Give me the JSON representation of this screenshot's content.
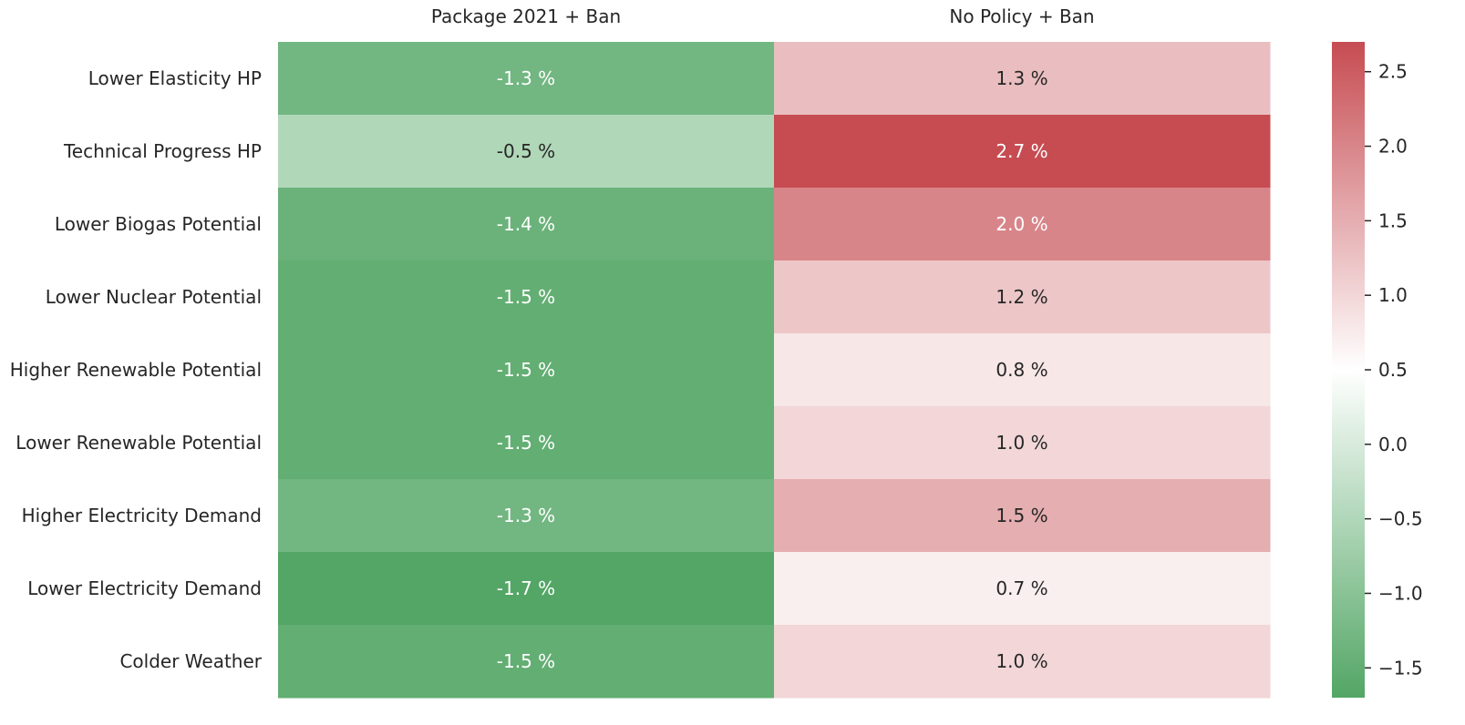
{
  "chart_data": {
    "type": "heatmap",
    "title": "",
    "xlabel": "",
    "ylabel": "",
    "x_axis_position": "top",
    "columns": [
      "Package 2021 + Ban",
      "No Policy + Ban"
    ],
    "rows": [
      "Lower Elasticity HP",
      "Technical Progress HP",
      "Lower Biogas Potential",
      "Lower Nuclear Potential",
      "Higher Renewable Potential",
      "Lower Renewable Potential",
      "Higher Electricity Demand",
      "Lower Electricity Demand",
      "Colder Weather"
    ],
    "values": [
      [
        -1.3,
        1.3
      ],
      [
        -0.5,
        2.7
      ],
      [
        -1.4,
        2.0
      ],
      [
        -1.5,
        1.2
      ],
      [
        -1.5,
        0.8
      ],
      [
        -1.5,
        1.0
      ],
      [
        -1.3,
        1.5
      ],
      [
        -1.7,
        0.7
      ],
      [
        -1.5,
        1.0
      ]
    ],
    "cell_labels": [
      [
        "-1.3 %",
        "1.3 %"
      ],
      [
        "-0.5 %",
        "2.7 %"
      ],
      [
        "-1.4 %",
        "2.0 %"
      ],
      [
        "-1.5 %",
        "1.2 %"
      ],
      [
        "-1.5 %",
        "0.8 %"
      ],
      [
        "-1.5 %",
        "1.0 %"
      ],
      [
        "-1.3 %",
        "1.5 %"
      ],
      [
        "-1.7 %",
        "0.7 %"
      ],
      [
        "-1.5 %",
        "1.0 %"
      ]
    ],
    "colorbar": {
      "range": [
        -1.7,
        2.7
      ],
      "center": 0.5,
      "ticks": [
        -1.5,
        -1.0,
        -0.5,
        0.0,
        0.5,
        1.0,
        1.5,
        2.0,
        2.5
      ],
      "tick_labels": [
        "−1.5",
        "−1.0",
        "−0.5",
        "0.0",
        "0.5",
        "1.0",
        "1.5",
        "2.0",
        "2.5"
      ],
      "colors": {
        "low": "#53a665",
        "mid": "#ffffff",
        "high": "#c64c52"
      }
    },
    "grid": false,
    "legend": "colorbar-right"
  }
}
